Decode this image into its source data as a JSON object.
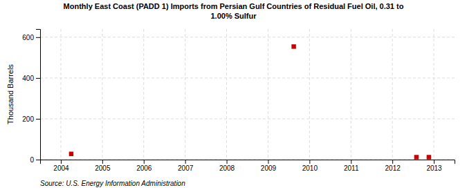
{
  "chart_data": {
    "type": "scatter",
    "title": "Monthly East Coast (PADD 1) Imports from Persian Gulf Countries of Residual Fuel Oil, 0.31 to\n1.00% Sulfur",
    "ylabel": "Thousand Barrels",
    "source": "Source: U.S. Energy Information Administration",
    "x": [
      2004.25,
      2009.62,
      2012.58,
      2012.88
    ],
    "values": [
      28,
      554,
      12,
      12
    ],
    "color": "#cc0000",
    "marker": "square",
    "xlim": [
      2003.5,
      2013.5
    ],
    "xticks": [
      2004,
      2005,
      2006,
      2007,
      2008,
      2009,
      2010,
      2011,
      2012,
      2013
    ],
    "ylim": [
      0,
      640
    ],
    "yticks": [
      0,
      200,
      400,
      600
    ],
    "grid": true
  }
}
